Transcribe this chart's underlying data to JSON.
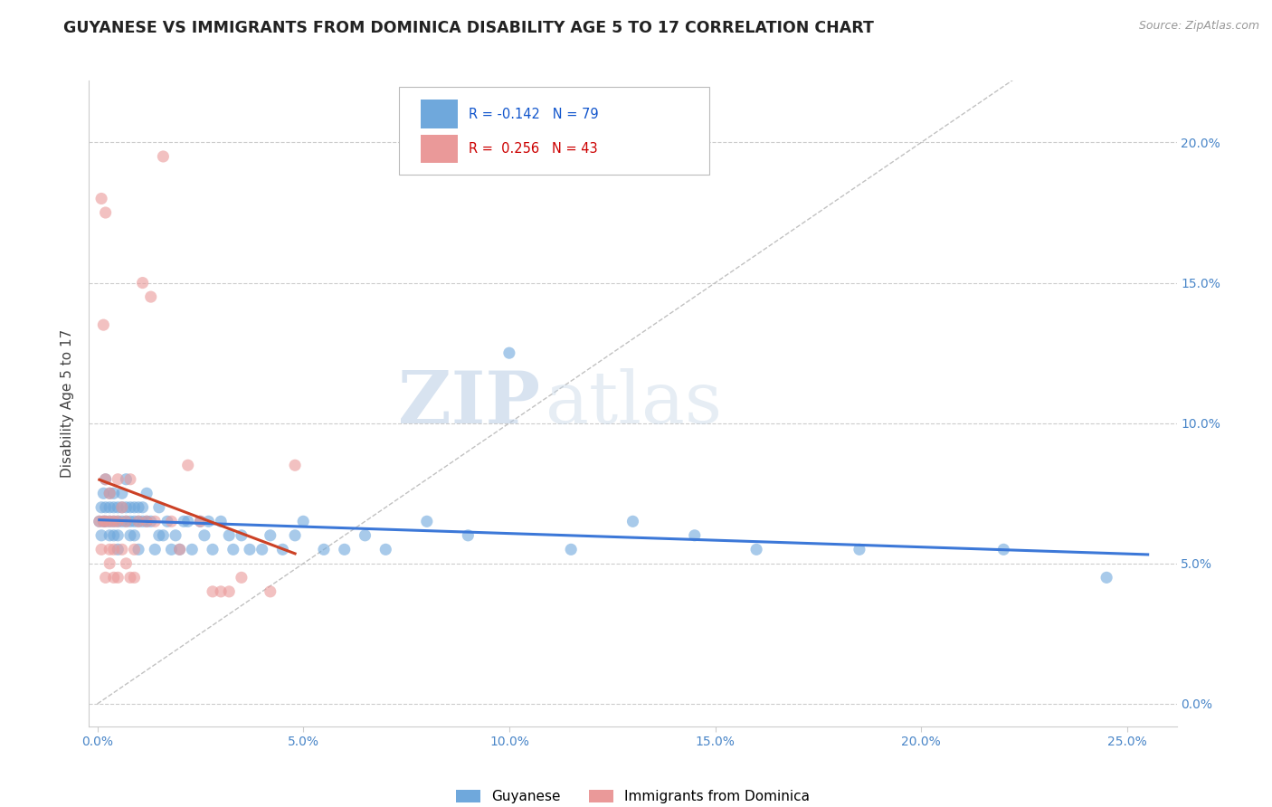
{
  "title": "GUYANESE VS IMMIGRANTS FROM DOMINICA DISABILITY AGE 5 TO 17 CORRELATION CHART",
  "source": "Source: ZipAtlas.com",
  "ylabel_label": "Disability Age 5 to 17",
  "x_ticks": [
    0.0,
    0.05,
    0.1,
    0.15,
    0.2,
    0.25
  ],
  "x_tick_labels": [
    "0.0%",
    "5.0%",
    "10.0%",
    "15.0%",
    "20.0%",
    "25.0%"
  ],
  "y_ticks": [
    0.0,
    0.05,
    0.1,
    0.15,
    0.2
  ],
  "y_tick_labels_right": [
    "0.0%",
    "5.0%",
    "10.0%",
    "15.0%",
    "20.0%"
  ],
  "xlim": [
    -0.002,
    0.262
  ],
  "ylim": [
    -0.008,
    0.222
  ],
  "blue_R": -0.142,
  "blue_N": 79,
  "pink_R": 0.256,
  "pink_N": 43,
  "blue_color": "#6fa8dc",
  "pink_color": "#ea9999",
  "blue_line_color": "#3c78d8",
  "pink_line_color": "#cc4125",
  "diagonal_color": "#bbbbbb",
  "watermark_zip": "ZIP",
  "watermark_atlas": "atlas",
  "blue_x": [
    0.0005,
    0.001,
    0.001,
    0.0015,
    0.0015,
    0.002,
    0.002,
    0.002,
    0.003,
    0.003,
    0.003,
    0.003,
    0.004,
    0.004,
    0.004,
    0.004,
    0.005,
    0.005,
    0.005,
    0.005,
    0.006,
    0.006,
    0.006,
    0.007,
    0.007,
    0.007,
    0.008,
    0.008,
    0.008,
    0.009,
    0.009,
    0.009,
    0.01,
    0.01,
    0.01,
    0.011,
    0.011,
    0.012,
    0.012,
    0.013,
    0.014,
    0.015,
    0.015,
    0.016,
    0.017,
    0.018,
    0.019,
    0.02,
    0.021,
    0.022,
    0.023,
    0.025,
    0.026,
    0.027,
    0.028,
    0.03,
    0.032,
    0.033,
    0.035,
    0.037,
    0.04,
    0.042,
    0.045,
    0.048,
    0.05,
    0.055,
    0.06,
    0.065,
    0.07,
    0.08,
    0.09,
    0.1,
    0.115,
    0.13,
    0.145,
    0.16,
    0.185,
    0.22,
    0.245
  ],
  "blue_y": [
    0.065,
    0.07,
    0.06,
    0.075,
    0.065,
    0.065,
    0.07,
    0.08,
    0.06,
    0.065,
    0.075,
    0.07,
    0.06,
    0.065,
    0.07,
    0.075,
    0.055,
    0.06,
    0.065,
    0.07,
    0.065,
    0.07,
    0.075,
    0.065,
    0.07,
    0.08,
    0.06,
    0.065,
    0.07,
    0.06,
    0.065,
    0.07,
    0.055,
    0.065,
    0.07,
    0.065,
    0.07,
    0.065,
    0.075,
    0.065,
    0.055,
    0.06,
    0.07,
    0.06,
    0.065,
    0.055,
    0.06,
    0.055,
    0.065,
    0.065,
    0.055,
    0.065,
    0.06,
    0.065,
    0.055,
    0.065,
    0.06,
    0.055,
    0.06,
    0.055,
    0.055,
    0.06,
    0.055,
    0.06,
    0.065,
    0.055,
    0.055,
    0.06,
    0.055,
    0.065,
    0.06,
    0.125,
    0.055,
    0.065,
    0.06,
    0.055,
    0.055,
    0.055,
    0.045
  ],
  "pink_x": [
    0.0005,
    0.001,
    0.001,
    0.0015,
    0.0015,
    0.002,
    0.002,
    0.002,
    0.002,
    0.003,
    0.003,
    0.003,
    0.003,
    0.004,
    0.004,
    0.004,
    0.005,
    0.005,
    0.005,
    0.006,
    0.006,
    0.007,
    0.007,
    0.008,
    0.008,
    0.009,
    0.009,
    0.01,
    0.011,
    0.012,
    0.013,
    0.014,
    0.016,
    0.018,
    0.02,
    0.022,
    0.025,
    0.028,
    0.03,
    0.032,
    0.035,
    0.042,
    0.048
  ],
  "pink_y": [
    0.065,
    0.18,
    0.055,
    0.135,
    0.065,
    0.175,
    0.08,
    0.065,
    0.045,
    0.065,
    0.075,
    0.055,
    0.05,
    0.065,
    0.055,
    0.045,
    0.08,
    0.065,
    0.045,
    0.07,
    0.055,
    0.065,
    0.05,
    0.08,
    0.045,
    0.055,
    0.045,
    0.065,
    0.15,
    0.065,
    0.145,
    0.065,
    0.195,
    0.065,
    0.055,
    0.085,
    0.065,
    0.04,
    0.04,
    0.04,
    0.045,
    0.04,
    0.085
  ]
}
